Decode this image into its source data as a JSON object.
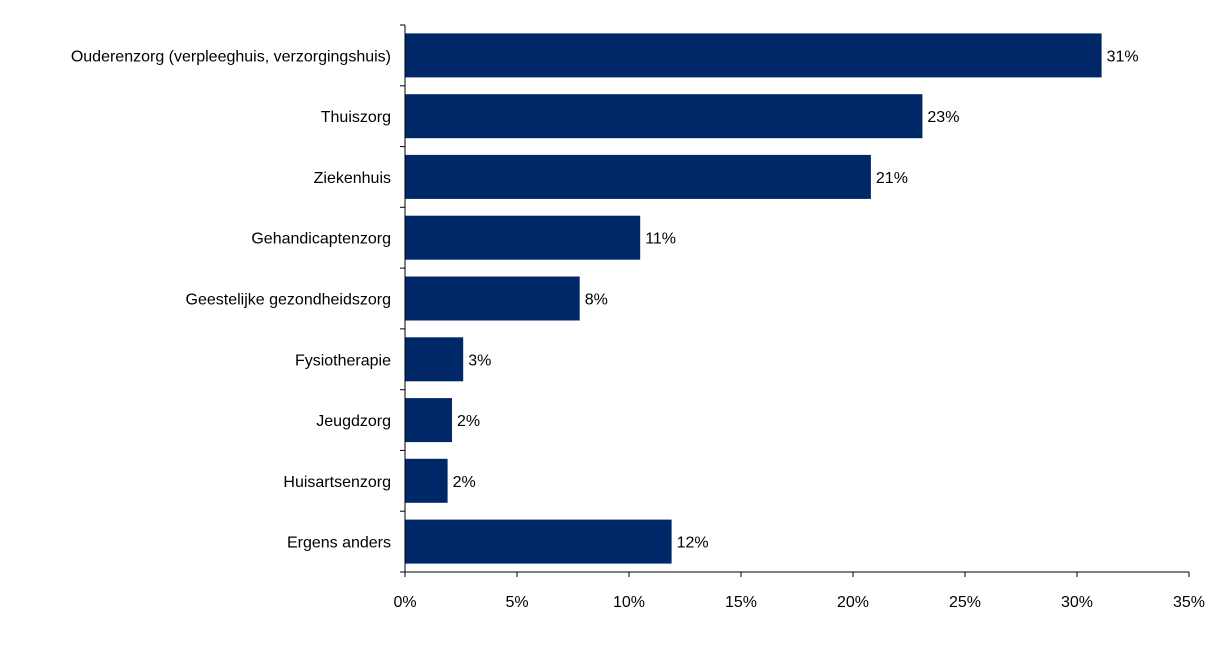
{
  "chart_data": {
    "type": "bar",
    "orientation": "horizontal",
    "title": "",
    "xlabel": "",
    "ylabel": "",
    "categories": [
      "Ouderenzorg (verpleeghuis, verzorgingshuis)",
      "Thuiszorg",
      "Ziekenhuis",
      "Gehandicaptenzorg",
      "Geestelijke gezondheidszorg",
      "Fysiotherapie",
      "Jeugdzorg",
      "Huisartsenzorg",
      "Ergens anders"
    ],
    "values": [
      31.1,
      23.1,
      20.8,
      10.5,
      7.8,
      2.6,
      2.1,
      1.9,
      11.9
    ],
    "data_labels": [
      "31%",
      "23%",
      "21%",
      "11%",
      "8%",
      "3%",
      "2%",
      "2%",
      "12%"
    ],
    "xlim": [
      0,
      35
    ],
    "xticks": [
      0,
      5,
      10,
      15,
      20,
      25,
      30,
      35
    ],
    "xtick_labels": [
      "0%",
      "5%",
      "10%",
      "15%",
      "20%",
      "25%",
      "30%",
      "35%"
    ],
    "grid": false,
    "legend": "none",
    "colors": {
      "bar": "#002868",
      "axis": "#000000",
      "text": "#000000"
    }
  }
}
